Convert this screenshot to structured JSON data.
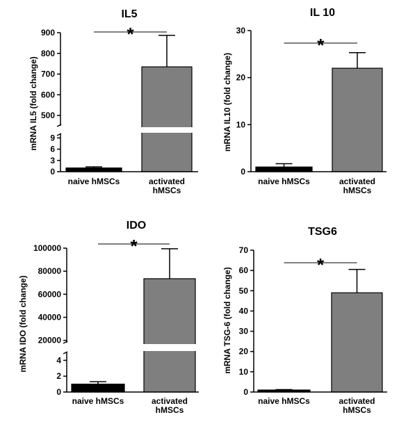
{
  "chart_data": [
    {
      "type": "bar",
      "title": "IL5",
      "ylabel": "mRNA IL5 (fold change)",
      "xlabel": "",
      "categories": [
        "naive hMSCs",
        "activated hMSCs"
      ],
      "category_lines": [
        [
          "naive hMSCs"
        ],
        [
          "activated",
          "hMSCs"
        ]
      ],
      "values": [
        1,
        735
      ],
      "errors": [
        0.3,
        152
      ],
      "bar_colors": [
        "#000000",
        "#7f7f7f"
      ],
      "axis_break": true,
      "lower_ylim": [
        0,
        10
      ],
      "lower_ticks": [
        0,
        3,
        6,
        9
      ],
      "upper_ylim": [
        450,
        900
      ],
      "upper_ticks": [
        500,
        600,
        700,
        800,
        900
      ],
      "significance": "*"
    },
    {
      "type": "bar",
      "title": "IL 10",
      "ylabel": "mRNA IL10 (fold change)",
      "xlabel": "",
      "categories": [
        "naive hMSCs",
        "activated hMSCs"
      ],
      "category_lines": [
        [
          "naive hMSCs"
        ],
        [
          "activated",
          "hMSCs"
        ]
      ],
      "values": [
        1,
        22
      ],
      "errors": [
        0.7,
        3.3
      ],
      "bar_colors": [
        "#000000",
        "#7f7f7f"
      ],
      "axis_break": false,
      "ylim": [
        0,
        30
      ],
      "ticks": [
        0,
        10,
        20,
        30
      ],
      "significance": "*"
    },
    {
      "type": "bar",
      "title": "IDO",
      "ylabel": "mRNA IDO (fold change)",
      "xlabel": "",
      "categories": [
        "naive hMSCs",
        "activated hMSCs"
      ],
      "category_lines": [
        [
          "naive hMSCs"
        ],
        [
          "activated",
          "hMSCs"
        ]
      ],
      "values": [
        1,
        73500
      ],
      "errors": [
        0.3,
        26000
      ],
      "bar_colors": [
        "#000000",
        "#7f7f7f"
      ],
      "axis_break": true,
      "lower_ylim": [
        0,
        5
      ],
      "lower_ticks": [
        0,
        2,
        4
      ],
      "upper_ylim": [
        18000,
        100000
      ],
      "upper_ticks": [
        20000,
        40000,
        60000,
        80000,
        100000
      ],
      "significance": "*"
    },
    {
      "type": "bar",
      "title": "TSG6",
      "ylabel": "mRNA TSG-6 (fold change)",
      "xlabel": "",
      "categories": [
        "naive hMSCs",
        "activated hMSCs"
      ],
      "category_lines": [
        [
          "naive hMSCs"
        ],
        [
          "activated",
          "hMSCs"
        ]
      ],
      "values": [
        1,
        49
      ],
      "errors": [
        0.2,
        11.5
      ],
      "bar_colors": [
        "#000000",
        "#7f7f7f"
      ],
      "axis_break": false,
      "ylim": [
        0,
        70
      ],
      "ticks": [
        0,
        10,
        20,
        30,
        40,
        50,
        60,
        70
      ],
      "significance": "*"
    }
  ]
}
